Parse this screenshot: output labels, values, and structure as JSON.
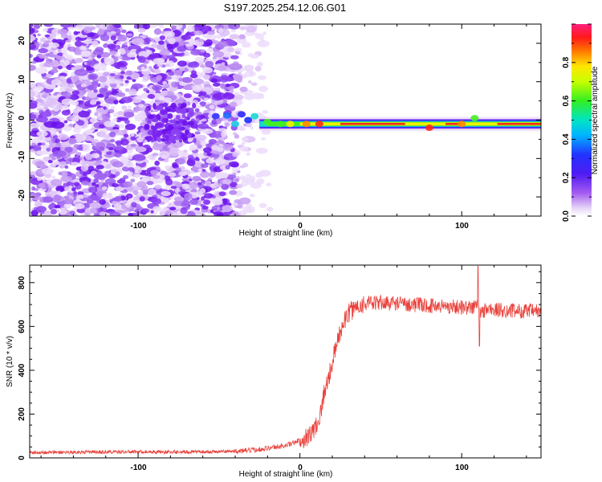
{
  "chart_data": [
    {
      "type": "heatmap",
      "title": "S197.2025.254.12.06.G01",
      "xlabel": "Height of straight line (km)",
      "ylabel": "Frequency (Hz)",
      "xlim": [
        -167,
        149
      ],
      "ylim": [
        -25,
        25
      ],
      "x_ticks": [
        "-100",
        "0",
        "100"
      ],
      "x_tick_values": [
        -100,
        0,
        100
      ],
      "y_ticks": [
        "20",
        "10",
        "0",
        "-10",
        "-20"
      ],
      "y_tick_values": [
        20,
        10,
        0,
        -10,
        -20
      ],
      "noise_region_x": [
        -167,
        -25
      ],
      "signal_band_center_hz": -1,
      "signal_start_km": -55,
      "colorbar": {
        "label": "Normalized spectral amplitude",
        "ticks": [
          "0.0",
          "0.2",
          "0.4",
          "0.6",
          "0.8"
        ],
        "tick_values": [
          0.0,
          0.2,
          0.4,
          0.6,
          0.8
        ],
        "range": [
          0,
          1
        ]
      }
    },
    {
      "type": "line",
      "title": "",
      "xlabel": "Height of straight line (km)",
      "ylabel": "SNR (10 * v/v)",
      "xlim": [
        -167,
        149
      ],
      "ylim": [
        0,
        880
      ],
      "x_ticks": [
        "-100",
        "0",
        "100"
      ],
      "x_tick_values": [
        -100,
        0,
        100
      ],
      "y_ticks": [
        "0",
        "200",
        "400",
        "600",
        "800"
      ],
      "y_tick_values": [
        0,
        200,
        400,
        600,
        800
      ],
      "series": [
        {
          "name": "SNR",
          "color": "#e8413b",
          "x": [
            -167,
            -140,
            -120,
            -100,
            -80,
            -60,
            -40,
            -30,
            -20,
            -10,
            -5,
            0,
            5,
            8,
            10,
            13,
            15,
            18,
            20,
            23,
            25,
            28,
            30,
            33,
            35,
            38,
            40,
            43,
            45,
            50,
            55,
            60,
            65,
            70,
            75,
            80,
            85,
            90,
            95,
            100,
            105,
            108,
            110,
            112,
            115,
            120,
            130,
            140,
            149
          ],
          "values": [
            25,
            26,
            27,
            28,
            27,
            28,
            30,
            35,
            45,
            55,
            65,
            80,
            100,
            120,
            150,
            210,
            300,
            370,
            440,
            520,
            580,
            630,
            660,
            680,
            690,
            700,
            705,
            705,
            705,
            708,
            706,
            707,
            702,
            700,
            697,
            695,
            694,
            692,
            690,
            688,
            685,
            690,
            700,
            660,
            680,
            675,
            672,
            670,
            668
          ]
        }
      ],
      "spikes": [
        {
          "x": 110,
          "y": 875
        },
        {
          "x": 111,
          "y": 510
        }
      ]
    }
  ]
}
